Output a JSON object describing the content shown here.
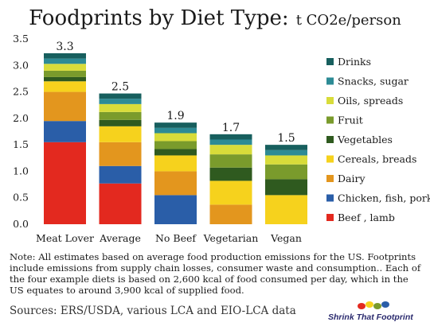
{
  "title": {
    "main": "Foodprints by Diet Type:",
    "unit": "t CO2e/person"
  },
  "chart_data": {
    "type": "bar",
    "stacked": true,
    "title": "Foodprints by Diet Type: t CO2e/person",
    "xlabel": "",
    "ylabel": "",
    "ylim": [
      0,
      3.5
    ],
    "yticks": [
      "0.0",
      "0.5",
      "1.0",
      "1.5",
      "2.0",
      "2.5",
      "3.0",
      "3.5"
    ],
    "categories": [
      "Meat Lover",
      "Average",
      "No Beef",
      "Vegetarian",
      "Vegan"
    ],
    "totals_labels": [
      "3.3",
      "2.5",
      "1.9",
      "1.7",
      "1.5"
    ],
    "legend_position": "right",
    "grid": false,
    "series": [
      {
        "name": "Beef , lamb",
        "color": "#e3291f",
        "values": [
          1.55,
          0.77,
          0,
          0,
          0
        ]
      },
      {
        "name": "Chicken, fish, pork",
        "color": "#2a5ea8",
        "values": [
          0.4,
          0.33,
          0.55,
          0,
          0
        ]
      },
      {
        "name": "Dairy",
        "color": "#e3961e",
        "values": [
          0.55,
          0.45,
          0.45,
          0.37,
          0
        ]
      },
      {
        "name": "Cereals, breads",
        "color": "#f6d21d",
        "values": [
          0.2,
          0.3,
          0.3,
          0.45,
          0.55
        ]
      },
      {
        "name": "Vegetables",
        "color": "#2f5a1f",
        "values": [
          0.08,
          0.12,
          0.12,
          0.25,
          0.3
        ]
      },
      {
        "name": "Fruit",
        "color": "#7a9b2c",
        "values": [
          0.12,
          0.15,
          0.15,
          0.25,
          0.28
        ]
      },
      {
        "name": "Oils, spreads",
        "color": "#d8dc3a",
        "values": [
          0.13,
          0.15,
          0.15,
          0.18,
          0.17
        ]
      },
      {
        "name": "Snacks, sugar",
        "color": "#2d8b95",
        "values": [
          0.1,
          0.1,
          0.1,
          0.1,
          0.1
        ]
      },
      {
        "name": "Drinks",
        "color": "#175f5e",
        "values": [
          0.1,
          0.1,
          0.1,
          0.1,
          0.1
        ]
      }
    ]
  },
  "note": "Note: All estimates based on average food production emissions for the US. Footprints include emissions from supply chain losses, consumer waste and consumption..  Each of the four example diets is based on 2,600 kcal of food consumed per day, which in the US equates to around 3,900 kcal of supplied food.",
  "sources": "Sources:  ERS/USDA, various LCA and EIO-LCA data",
  "logo": {
    "text": "Shrink That Footprint",
    "colors": [
      "#e3291f",
      "#f6d21d",
      "#7a9b2c",
      "#2a5ea8"
    ]
  }
}
